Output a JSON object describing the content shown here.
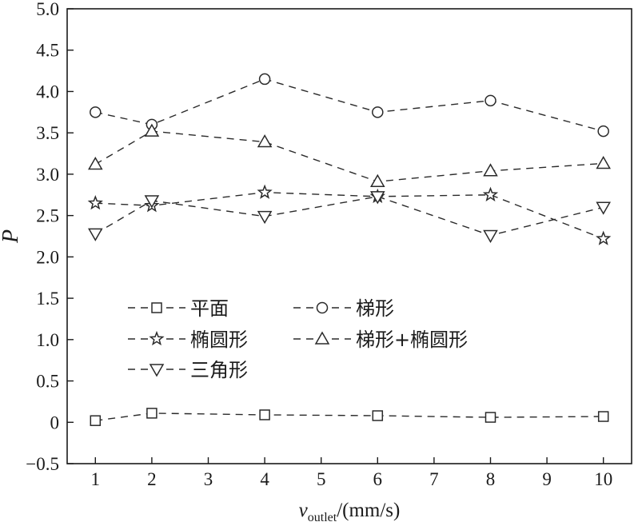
{
  "chart_data": {
    "type": "line",
    "x": [
      1,
      2,
      4,
      6,
      8,
      10
    ],
    "series": [
      {
        "name": "平面",
        "marker": "square",
        "values": [
          0.02,
          0.11,
          0.09,
          0.08,
          0.06,
          0.07
        ]
      },
      {
        "name": "梯形",
        "marker": "circle",
        "values": [
          3.75,
          3.6,
          4.15,
          3.75,
          3.89,
          3.52
        ]
      },
      {
        "name": "椭圆形",
        "marker": "star",
        "values": [
          2.65,
          2.62,
          2.78,
          2.73,
          2.75,
          2.22
        ]
      },
      {
        "name": "梯形+椭圆形",
        "marker": "triangle-up",
        "values": [
          3.12,
          3.52,
          3.39,
          2.91,
          3.04,
          3.13
        ]
      },
      {
        "name": "三角形",
        "marker": "triangle-down",
        "values": [
          2.28,
          2.68,
          2.49,
          2.73,
          2.26,
          2.6
        ]
      }
    ],
    "xlabel": {
      "main": "v",
      "sub": "outlet",
      "unit": "/(mm/s)"
    },
    "ylabel": "P",
    "xlim": [
      0.5,
      10.5
    ],
    "ylim": [
      -0.5,
      5.0
    ],
    "xticks": [
      "1",
      "2",
      "3",
      "4",
      "5",
      "6",
      "7",
      "8",
      "9",
      "10"
    ],
    "yticks": [
      "−0.5",
      "0",
      "0.5",
      "1.0",
      "1.5",
      "2.0",
      "2.5",
      "3.0",
      "3.5",
      "4.0",
      "4.5",
      "5.0"
    ],
    "legend_position": "middle-left",
    "grid": false,
    "colors": {
      "line": "#2a2a2a",
      "axis": "#1a1a1a",
      "background": "#ffffff"
    }
  }
}
